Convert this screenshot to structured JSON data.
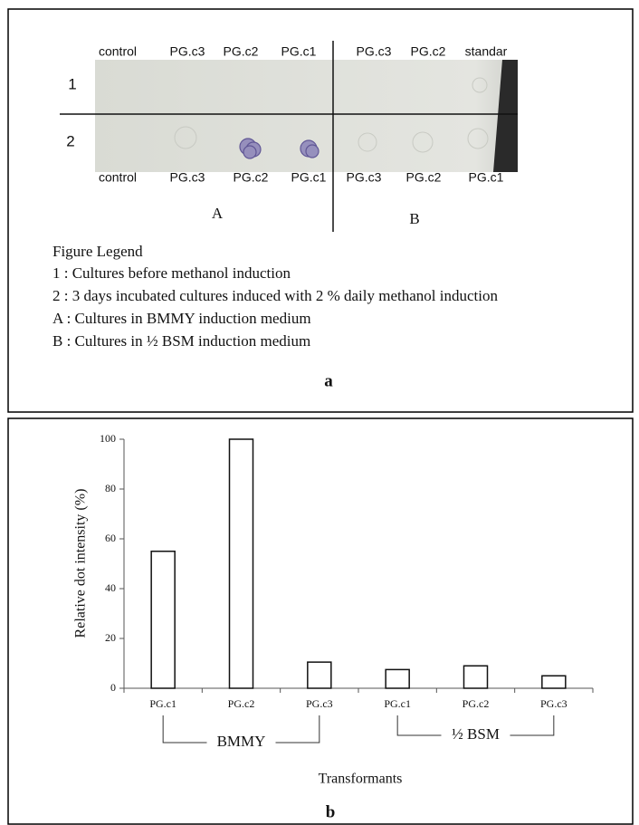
{
  "panel_a": {
    "top_labels": [
      "control",
      "PG.c3",
      "PG.c2",
      "PG.c1",
      "PG.c3",
      "PG.c2",
      "standar"
    ],
    "bottom_labels": [
      "control",
      "PG.c3",
      "PG.c2",
      "PG.c1",
      "PG.c3",
      "PG.c2",
      "PG.c1"
    ],
    "row_labels": [
      "1",
      "2"
    ],
    "group_labels": [
      "A",
      "B"
    ],
    "legend_title": "Figure Legend",
    "legend_items": [
      "1 : Cultures before methanol induction",
      "2 : 3 days incubated cultures induced with 2 % daily methanol induction",
      "A : Cultures in BMMY induction medium",
      "B : Cultures in ½ BSM induction medium"
    ],
    "caption": "a"
  },
  "chart_data": {
    "type": "bar",
    "ylabel": "Relative dot intensity (%)",
    "xlabel": "Transformants",
    "categories": [
      "PG.c1",
      "PG.c2",
      "PG.c3",
      "PG.c1",
      "PG.c2",
      "PG.c3"
    ],
    "values": [
      55,
      100,
      10.5,
      7.5,
      9,
      5
    ],
    "groups": [
      "BMMY",
      "½ BSM"
    ],
    "ylim": [
      0,
      100
    ],
    "yticks": [
      0,
      20,
      40,
      60,
      80,
      100
    ],
    "color": "#ffffff",
    "caption": "b"
  }
}
